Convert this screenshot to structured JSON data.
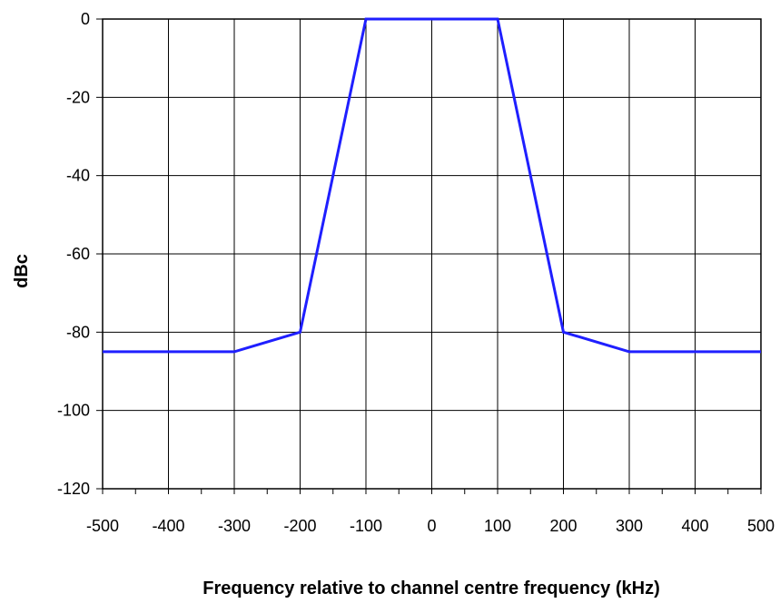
{
  "chart_data": {
    "type": "line",
    "title": "",
    "xlabel": "Frequency relative to channel centre frequency  (kHz)",
    "ylabel": "dBc",
    "xlim": [
      -500,
      500
    ],
    "ylim": [
      -120,
      0
    ],
    "x_ticks": [
      -500,
      -400,
      -300,
      -200,
      -100,
      0,
      100,
      200,
      300,
      400,
      500
    ],
    "y_ticks": [
      0,
      -20,
      -40,
      -60,
      -80,
      -100,
      -120
    ],
    "x_tick_labels": [
      "-500",
      "-400",
      "-300",
      "-200",
      "-100",
      "0",
      "100",
      "200",
      "300",
      "400",
      "500"
    ],
    "y_tick_labels": [
      "0",
      "-20",
      "-40",
      "-60",
      "-80",
      "-100",
      "-120"
    ],
    "grid": true,
    "legend": "none",
    "series": [
      {
        "color": "#1f1fff",
        "x": [
          -500,
          -300,
          -200,
          -100,
          100,
          200,
          300,
          500
        ],
        "y": [
          -85,
          -85,
          -80,
          0,
          0,
          -80,
          -85,
          -85
        ]
      }
    ]
  }
}
